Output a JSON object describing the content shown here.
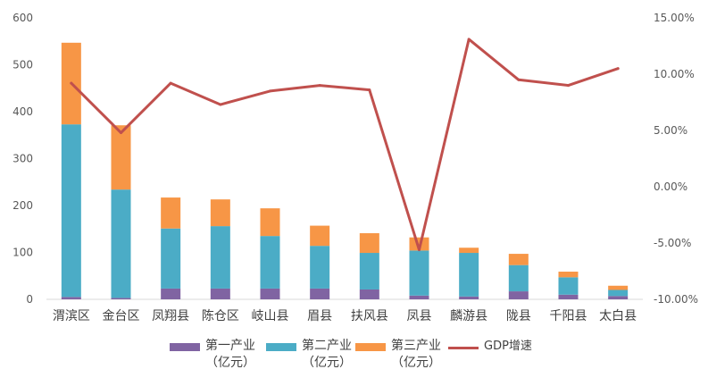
{
  "chart_data": {
    "type": "bar",
    "stacked": true,
    "categories": [
      "渭滨区",
      "金台区",
      "凤翔县",
      "陈仓区",
      "岐山县",
      "眉县",
      "扶风县",
      "凤县",
      "麟游县",
      "陇县",
      "千阳县",
      "太白县"
    ],
    "series": [
      {
        "name": "第一产业\n（亿元）",
        "kind": "bar",
        "axis": "left",
        "color": "#8064A2",
        "values": [
          5,
          3,
          23,
          23,
          23,
          23,
          21,
          8,
          6,
          17,
          10,
          7
        ]
      },
      {
        "name": "第二产业\n（亿元）",
        "kind": "bar",
        "axis": "left",
        "color": "#4BACC6",
        "values": [
          368,
          231,
          128,
          133,
          112,
          91,
          78,
          96,
          93,
          56,
          37,
          13
        ]
      },
      {
        "name": "第三产业\n（亿元）",
        "kind": "bar",
        "axis": "left",
        "color": "#F79646",
        "values": [
          174,
          137,
          66,
          57,
          59,
          43,
          42,
          28,
          11,
          24,
          12,
          9
        ]
      },
      {
        "name": "GDP增速",
        "kind": "line",
        "axis": "right",
        "color": "#C0504D",
        "values": [
          9.2,
          4.8,
          9.2,
          7.3,
          8.5,
          9.0,
          8.6,
          -5.6,
          13.1,
          9.5,
          9.0,
          10.5
        ]
      }
    ],
    "left_axis": {
      "min": 0,
      "max": 600,
      "step": 100,
      "tick_labels": [
        "0",
        "100",
        "200",
        "300",
        "400",
        "500",
        "600"
      ]
    },
    "right_axis": {
      "min": -10,
      "max": 15,
      "step": 5,
      "unit": "%",
      "tick_labels": [
        "-10.00%",
        "-5.00%",
        "0.00%",
        "5.00%",
        "10.00%",
        "15.00%"
      ]
    },
    "grid": false,
    "legend_position": "bottom"
  }
}
